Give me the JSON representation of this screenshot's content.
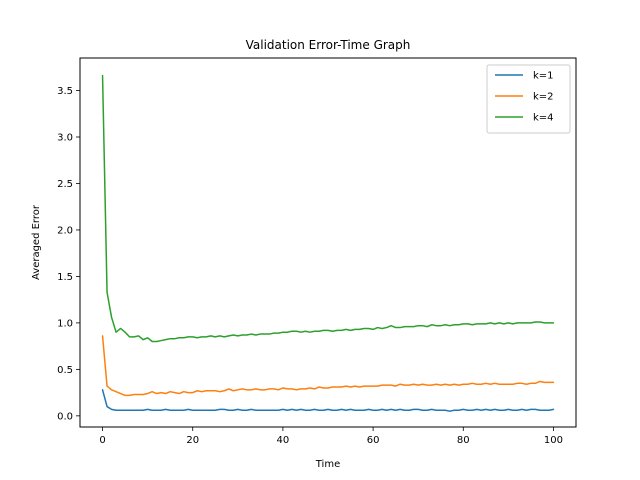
{
  "chart_data": {
    "type": "line",
    "title": "Validation Error-Time Graph",
    "xlabel": "Time",
    "ylabel": "Averaged Error",
    "xlim": [
      -5,
      105
    ],
    "ylim": [
      -0.12,
      3.85
    ],
    "xticks": [
      0,
      20,
      40,
      60,
      80,
      100
    ],
    "xtick_labels": [
      "0",
      "20",
      "40",
      "60",
      "80",
      "100"
    ],
    "yticks": [
      0.0,
      0.5,
      1.0,
      1.5,
      2.0,
      2.5,
      3.0,
      3.5
    ],
    "ytick_labels": [
      "0.0",
      "0.5",
      "1.0",
      "1.5",
      "2.0",
      "2.5",
      "3.0",
      "3.5"
    ],
    "grid": false,
    "legend_position": "top-right",
    "series": [
      {
        "name": "k=1",
        "color": "#1f77b4",
        "x": [
          0,
          1,
          2,
          3,
          4,
          5,
          6,
          7,
          8,
          9,
          10,
          11,
          12,
          13,
          14,
          15,
          16,
          17,
          18,
          19,
          20,
          21,
          22,
          23,
          24,
          25,
          26,
          27,
          28,
          29,
          30,
          31,
          32,
          33,
          34,
          35,
          36,
          37,
          38,
          39,
          40,
          41,
          42,
          43,
          44,
          45,
          46,
          47,
          48,
          49,
          50,
          51,
          52,
          53,
          54,
          55,
          56,
          57,
          58,
          59,
          60,
          61,
          62,
          63,
          64,
          65,
          66,
          67,
          68,
          69,
          70,
          71,
          72,
          73,
          74,
          75,
          76,
          77,
          78,
          79,
          80,
          81,
          82,
          83,
          84,
          85,
          86,
          87,
          88,
          89,
          90,
          91,
          92,
          93,
          94,
          95,
          96,
          97,
          98,
          99,
          100
        ],
        "y": [
          0.28,
          0.1,
          0.07,
          0.06,
          0.06,
          0.06,
          0.06,
          0.06,
          0.06,
          0.06,
          0.07,
          0.06,
          0.06,
          0.06,
          0.07,
          0.06,
          0.06,
          0.06,
          0.06,
          0.07,
          0.06,
          0.06,
          0.06,
          0.06,
          0.06,
          0.06,
          0.07,
          0.07,
          0.06,
          0.06,
          0.07,
          0.06,
          0.06,
          0.07,
          0.06,
          0.06,
          0.06,
          0.06,
          0.06,
          0.06,
          0.07,
          0.06,
          0.07,
          0.06,
          0.07,
          0.06,
          0.06,
          0.07,
          0.06,
          0.06,
          0.07,
          0.06,
          0.06,
          0.07,
          0.06,
          0.07,
          0.06,
          0.06,
          0.06,
          0.07,
          0.06,
          0.06,
          0.07,
          0.06,
          0.07,
          0.06,
          0.07,
          0.06,
          0.06,
          0.07,
          0.07,
          0.06,
          0.06,
          0.07,
          0.06,
          0.06,
          0.06,
          0.05,
          0.06,
          0.06,
          0.07,
          0.06,
          0.06,
          0.07,
          0.06,
          0.07,
          0.06,
          0.07,
          0.06,
          0.06,
          0.07,
          0.06,
          0.06,
          0.07,
          0.06,
          0.07,
          0.07,
          0.06,
          0.06,
          0.06,
          0.07
        ]
      },
      {
        "name": "k=2",
        "color": "#ff7f0e",
        "x": [
          0,
          1,
          2,
          3,
          4,
          5,
          6,
          7,
          8,
          9,
          10,
          11,
          12,
          13,
          14,
          15,
          16,
          17,
          18,
          19,
          20,
          21,
          22,
          23,
          24,
          25,
          26,
          27,
          28,
          29,
          30,
          31,
          32,
          33,
          34,
          35,
          36,
          37,
          38,
          39,
          40,
          41,
          42,
          43,
          44,
          45,
          46,
          47,
          48,
          49,
          50,
          51,
          52,
          53,
          54,
          55,
          56,
          57,
          58,
          59,
          60,
          61,
          62,
          63,
          64,
          65,
          66,
          67,
          68,
          69,
          70,
          71,
          72,
          73,
          74,
          75,
          76,
          77,
          78,
          79,
          80,
          81,
          82,
          83,
          84,
          85,
          86,
          87,
          88,
          89,
          90,
          91,
          92,
          93,
          94,
          95,
          96,
          97,
          98,
          99,
          100
        ],
        "y": [
          0.86,
          0.32,
          0.28,
          0.26,
          0.24,
          0.22,
          0.22,
          0.23,
          0.23,
          0.23,
          0.24,
          0.26,
          0.24,
          0.25,
          0.24,
          0.26,
          0.25,
          0.24,
          0.26,
          0.25,
          0.25,
          0.27,
          0.26,
          0.27,
          0.27,
          0.27,
          0.26,
          0.27,
          0.29,
          0.27,
          0.28,
          0.29,
          0.28,
          0.28,
          0.29,
          0.28,
          0.28,
          0.29,
          0.29,
          0.28,
          0.3,
          0.29,
          0.29,
          0.28,
          0.29,
          0.29,
          0.3,
          0.29,
          0.31,
          0.3,
          0.3,
          0.31,
          0.31,
          0.31,
          0.32,
          0.31,
          0.32,
          0.31,
          0.32,
          0.32,
          0.32,
          0.32,
          0.33,
          0.33,
          0.33,
          0.32,
          0.34,
          0.33,
          0.33,
          0.34,
          0.33,
          0.34,
          0.33,
          0.33,
          0.34,
          0.33,
          0.34,
          0.33,
          0.34,
          0.33,
          0.34,
          0.34,
          0.35,
          0.34,
          0.34,
          0.35,
          0.34,
          0.35,
          0.34,
          0.34,
          0.34,
          0.34,
          0.35,
          0.35,
          0.34,
          0.35,
          0.35,
          0.37,
          0.36,
          0.36,
          0.36
        ]
      },
      {
        "name": "k=4",
        "color": "#2ca02c",
        "x": [
          0,
          1,
          2,
          3,
          4,
          5,
          6,
          7,
          8,
          9,
          10,
          11,
          12,
          13,
          14,
          15,
          16,
          17,
          18,
          19,
          20,
          21,
          22,
          23,
          24,
          25,
          26,
          27,
          28,
          29,
          30,
          31,
          32,
          33,
          34,
          35,
          36,
          37,
          38,
          39,
          40,
          41,
          42,
          43,
          44,
          45,
          46,
          47,
          48,
          49,
          50,
          51,
          52,
          53,
          54,
          55,
          56,
          57,
          58,
          59,
          60,
          61,
          62,
          63,
          64,
          65,
          66,
          67,
          68,
          69,
          70,
          71,
          72,
          73,
          74,
          75,
          76,
          77,
          78,
          79,
          80,
          81,
          82,
          83,
          84,
          85,
          86,
          87,
          88,
          89,
          90,
          91,
          92,
          93,
          94,
          95,
          96,
          97,
          98,
          99,
          100
        ],
        "y": [
          3.66,
          1.33,
          1.06,
          0.9,
          0.94,
          0.9,
          0.85,
          0.85,
          0.86,
          0.82,
          0.84,
          0.8,
          0.8,
          0.81,
          0.82,
          0.83,
          0.83,
          0.84,
          0.84,
          0.85,
          0.85,
          0.84,
          0.85,
          0.85,
          0.86,
          0.85,
          0.86,
          0.85,
          0.86,
          0.87,
          0.86,
          0.87,
          0.87,
          0.88,
          0.87,
          0.88,
          0.88,
          0.88,
          0.89,
          0.89,
          0.9,
          0.9,
          0.91,
          0.91,
          0.9,
          0.91,
          0.9,
          0.91,
          0.91,
          0.92,
          0.92,
          0.91,
          0.92,
          0.92,
          0.93,
          0.92,
          0.93,
          0.93,
          0.94,
          0.94,
          0.93,
          0.95,
          0.94,
          0.95,
          0.97,
          0.95,
          0.95,
          0.96,
          0.96,
          0.96,
          0.97,
          0.97,
          0.96,
          0.98,
          0.97,
          0.97,
          0.98,
          0.97,
          0.98,
          0.98,
          0.99,
          0.99,
          0.98,
          0.99,
          0.99,
          0.99,
          1.0,
          0.99,
          1.0,
          0.99,
          1.0,
          0.99,
          1.0,
          1.0,
          1.0,
          1.0,
          1.01,
          1.01,
          1.0,
          1.0,
          1.0
        ]
      }
    ]
  }
}
